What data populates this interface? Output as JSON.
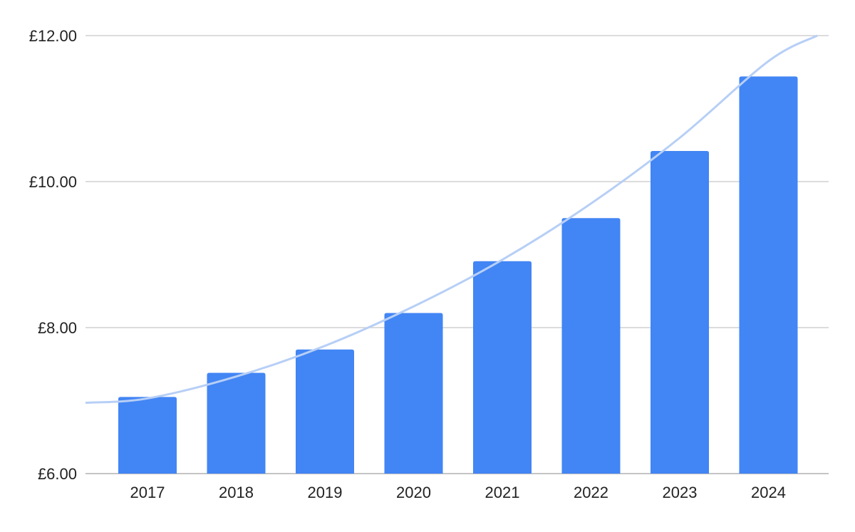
{
  "chart_data": {
    "type": "bar",
    "title": "",
    "xlabel": "",
    "ylabel": "",
    "categories": [
      "2017",
      "2018",
      "2019",
      "2020",
      "2021",
      "2022",
      "2023",
      "2024"
    ],
    "values": [
      7.05,
      7.38,
      7.7,
      8.2,
      8.91,
      9.5,
      10.42,
      11.44
    ],
    "ylim": [
      6,
      12
    ],
    "yticks": [
      6,
      8,
      10,
      12
    ],
    "ytick_labels": [
      "£6.00",
      "£8.00",
      "£10.00",
      "£12.00"
    ],
    "grid": true,
    "legend": "none",
    "trendline": {
      "type": "exponential",
      "description": "curved trend line fitted to bars",
      "points": [
        {
          "x": "start",
          "y": 6.97
        },
        {
          "x": "2017",
          "y": 7.03
        },
        {
          "x": "2018",
          "y": 7.33
        },
        {
          "x": "2019",
          "y": 7.75
        },
        {
          "x": "2020",
          "y": 8.29
        },
        {
          "x": "2021",
          "y": 8.93
        },
        {
          "x": "2022",
          "y": 9.7
        },
        {
          "x": "2023",
          "y": 10.6
        },
        {
          "x": "2024",
          "y": 11.65
        },
        {
          "x": "end",
          "y": 12.0
        }
      ]
    },
    "colors": {
      "bar": "#4285F4",
      "trendline": "#B7CFF6",
      "grid": "#C6C6C6",
      "axis": "#B0B0B0"
    }
  }
}
